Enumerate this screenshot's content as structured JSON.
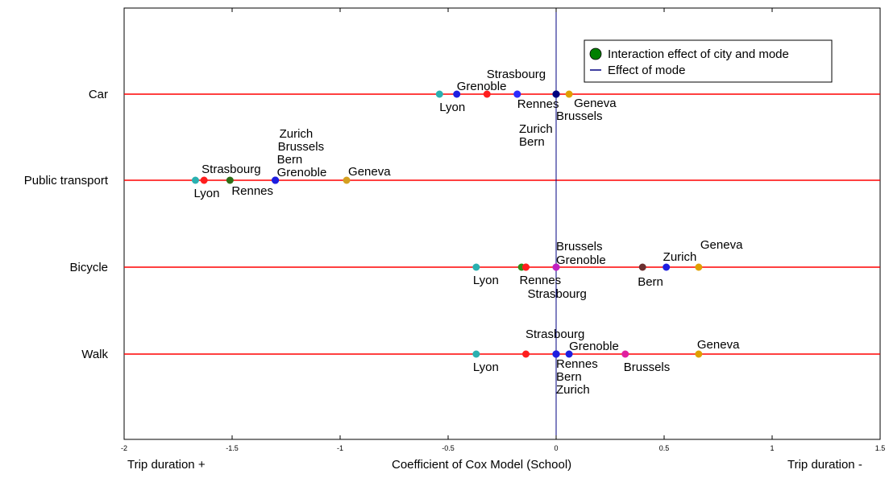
{
  "chart_data": {
    "type": "scatter",
    "xlabel": "Coefficient of Cox Model (School)",
    "xlabel_left": "Trip duration +",
    "xlabel_right": "Trip duration -",
    "xlim": [
      -2,
      1.5
    ],
    "xticks": [
      "-2",
      "-1.5",
      "-1",
      "-0.5",
      "0",
      "0.5",
      "1",
      "1.5"
    ],
    "categories": [
      "Car",
      "Public transport",
      "Bicycle",
      "Walk"
    ],
    "mode_line_color": "#ff0000",
    "zero_line_color": "#000080",
    "legend": {
      "position": "top-right",
      "items": [
        "Interaction effect of city and mode",
        "Effect of mode"
      ],
      "marker_color": "#008000"
    },
    "series": [
      {
        "category": "Car",
        "points": [
          {
            "city": "Lyon",
            "x": -0.54,
            "color": "#2ab0b0"
          },
          {
            "city": "Grenoble",
            "x": -0.46,
            "color": "#1e1ee0"
          },
          {
            "city": "",
            "x": -0.32,
            "color": "#ff1e1e"
          },
          {
            "city": "Strasbourg",
            "x": -0.18,
            "color": "#7a2bb0"
          },
          {
            "city": "Rennes",
            "x": -0.18,
            "color": "#2b2bff"
          },
          {
            "city": "Brussels",
            "x": 0.0,
            "color": "#000080"
          },
          {
            "city": "Zurich",
            "x": 0.0,
            "color": "#000080"
          },
          {
            "city": "Bern",
            "x": 0.0,
            "color": "#000080"
          },
          {
            "city": "Geneva",
            "x": 0.06,
            "color": "#e0a000"
          }
        ]
      },
      {
        "category": "Public transport",
        "points": [
          {
            "city": "Lyon",
            "x": -1.67,
            "color": "#2ab0b0"
          },
          {
            "city": "Strasbourg",
            "x": -1.63,
            "color": "#ff1e1e"
          },
          {
            "city": "Rennes",
            "x": -1.51,
            "color": "#2d6e16"
          },
          {
            "city": "Zurich",
            "x": -1.3,
            "color": "#1e1ee0"
          },
          {
            "city": "Brussels",
            "x": -1.3,
            "color": "#1e1ee0"
          },
          {
            "city": "Bern",
            "x": -1.3,
            "color": "#1e1ee0"
          },
          {
            "city": "Grenoble",
            "x": -1.3,
            "color": "#1e1ee0"
          },
          {
            "city": "Geneva",
            "x": -0.97,
            "color": "#d4a020"
          }
        ]
      },
      {
        "category": "Bicycle",
        "points": [
          {
            "city": "Lyon",
            "x": -0.37,
            "color": "#2ab0b0"
          },
          {
            "city": "",
            "x": -0.16,
            "color": "#2d8e16"
          },
          {
            "city": "Rennes",
            "x": -0.14,
            "color": "#ff1e1e"
          },
          {
            "city": "Strasbourg",
            "x": -0.14,
            "color": "#ff1e1e"
          },
          {
            "city": "Brussels",
            "x": 0.0,
            "color": "#c020c0"
          },
          {
            "city": "Grenoble",
            "x": 0.0,
            "color": "#c020c0"
          },
          {
            "city": "Bern",
            "x": 0.4,
            "color": "#6b3030"
          },
          {
            "city": "Zurich",
            "x": 0.51,
            "color": "#1e1ee0"
          },
          {
            "city": "Geneva",
            "x": 0.66,
            "color": "#e0a000"
          }
        ]
      },
      {
        "category": "Walk",
        "points": [
          {
            "city": "Lyon",
            "x": -0.37,
            "color": "#2ab0b0"
          },
          {
            "city": "",
            "x": -0.14,
            "color": "#ff1e1e"
          },
          {
            "city": "Strasbourg",
            "x": 0.0,
            "color": "#1e1ee0"
          },
          {
            "city": "Rennes",
            "x": 0.0,
            "color": "#1e1ee0"
          },
          {
            "city": "Bern",
            "x": 0.0,
            "color": "#1e1ee0"
          },
          {
            "city": "Zurich",
            "x": 0.0,
            "color": "#1e1ee0"
          },
          {
            "city": "Grenoble",
            "x": 0.06,
            "color": "#1e1ee0"
          },
          {
            "city": "Brussels",
            "x": 0.32,
            "color": "#e020a0"
          },
          {
            "city": "Geneva",
            "x": 0.66,
            "color": "#e0a000"
          }
        ]
      }
    ]
  }
}
